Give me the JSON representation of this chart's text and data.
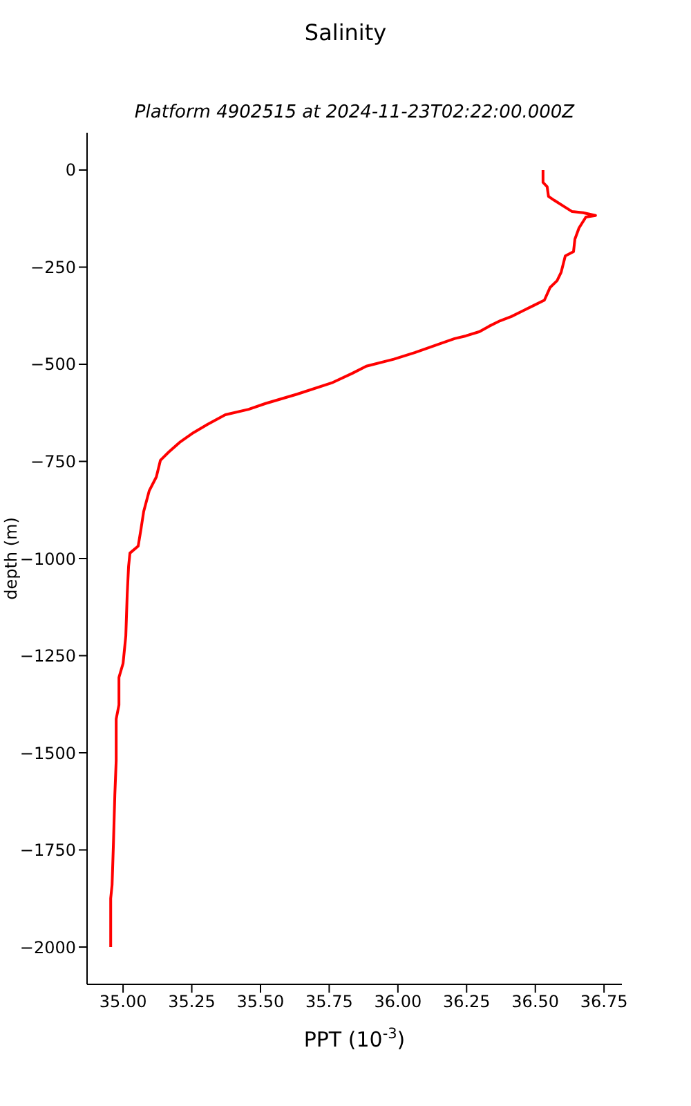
{
  "chart_data": {
    "type": "line",
    "title": "Salinity",
    "subtitle": "Platform 4902515 at 2024-11-23T02:22:00.000Z",
    "xlabel": "PPT (10$^{-3}$)",
    "ylabel": "depth (m)",
    "x": [
      36.528,
      36.528,
      36.543,
      36.548,
      36.569,
      36.609,
      36.634,
      36.674,
      36.719,
      36.684,
      36.659,
      36.644,
      36.639,
      36.609,
      36.594,
      36.579,
      36.554,
      36.533,
      36.493,
      36.453,
      36.413,
      36.372,
      36.332,
      36.297,
      36.247,
      36.206,
      36.161,
      36.061,
      35.985,
      35.885,
      35.835,
      35.759,
      35.633,
      35.518,
      35.457,
      35.372,
      35.307,
      35.256,
      35.206,
      35.166,
      35.136,
      35.121,
      35.095,
      35.075,
      35.065,
      35.055,
      35.025,
      35.02,
      35.015,
      35.01,
      35,
      34.985,
      34.985,
      34.975,
      34.975,
      34.97,
      34.965,
      34.96,
      34.955,
      34.955
    ],
    "series": [
      {
        "color": "#ff0000",
        "values": [
          0,
          -32,
          -43,
          -68,
          -78,
          -96,
          -107,
          -110,
          -117,
          -121,
          -149,
          -178,
          -210,
          -221,
          -263,
          -285,
          -302,
          -335,
          -349,
          -363,
          -377,
          -388,
          -402,
          -416,
          -427,
          -434,
          -445,
          -470,
          -487,
          -505,
          -523,
          -548,
          -577,
          -601,
          -616,
          -630,
          -655,
          -676,
          -701,
          -726,
          -747,
          -790,
          -826,
          -879,
          -925,
          -968,
          -986,
          -1021,
          -1093,
          -1199,
          -1270,
          -1306,
          -1377,
          -1413,
          -1520,
          -1609,
          -1733,
          -1840,
          -1875,
          -2000
        ]
      }
    ],
    "xlim": [
      34.869,
      36.815
    ],
    "xticks": [
      {
        "value": 35,
        "label": "35.00"
      },
      35.25,
      {
        "value": 35.5,
        "label": "35.50"
      },
      35.75,
      {
        "value": 36,
        "label": "36.00"
      },
      36.25,
      {
        "value": 36.5,
        "label": "36.50"
      },
      36.75
    ],
    "ylim": [
      -2096,
      96
    ],
    "yticks": [
      0,
      -250,
      -500,
      -750,
      -1000,
      -1250,
      -1500,
      -1750,
      -2000
    ],
    "grid": false,
    "marker": "none",
    "line_style": "solid"
  }
}
